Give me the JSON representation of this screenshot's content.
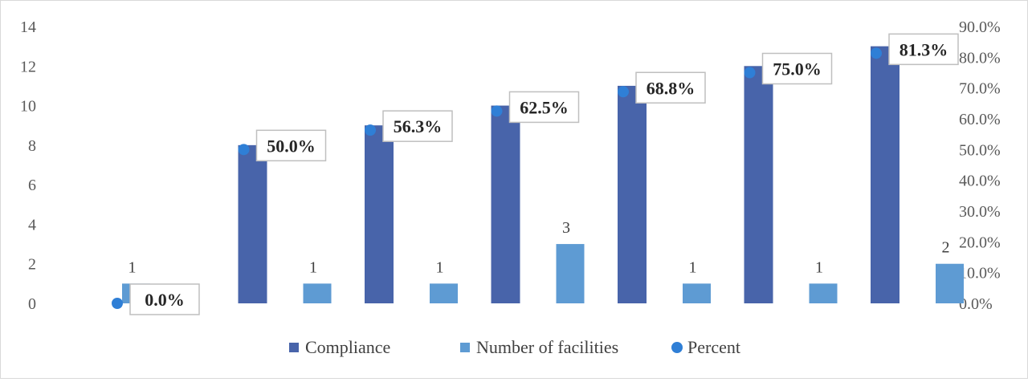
{
  "chart_data": {
    "type": "bar",
    "categories": [
      "",
      "",
      "",
      "",
      "",
      "",
      ""
    ],
    "series": [
      {
        "name": "Compliance",
        "kind": "bar",
        "axis": "left",
        "color": "#4864aa",
        "values": [
          0,
          8,
          9,
          10,
          11,
          12,
          13
        ]
      },
      {
        "name": "Number of facilities",
        "kind": "bar",
        "axis": "left",
        "color": "#5e9bd3",
        "values": [
          1,
          1,
          1,
          3,
          1,
          1,
          2
        ],
        "labels": [
          "1",
          "1",
          "1",
          "3",
          "1",
          "1",
          "2"
        ]
      },
      {
        "name": "Percent",
        "kind": "scatter",
        "axis": "right",
        "color": "#2f7fd6",
        "values": [
          0.0,
          50.0,
          56.3,
          62.5,
          68.8,
          75.0,
          81.3
        ],
        "labels": [
          "0.0%",
          "50.0%",
          "56.3%",
          "62.5%",
          "68.8%",
          "75.0%",
          "81.3%"
        ]
      }
    ],
    "y_left": {
      "range": [
        0,
        14
      ],
      "ticks": [
        "0",
        "2",
        "4",
        "6",
        "8",
        "10",
        "12",
        "14"
      ]
    },
    "y_right": {
      "range": [
        0,
        90
      ],
      "ticks": [
        "0.0%",
        "10.0%",
        "20.0%",
        "30.0%",
        "40.0%",
        "50.0%",
        "60.0%",
        "70.0%",
        "80.0%",
        "90.0%"
      ]
    },
    "grid": false,
    "legend_position": "bottom"
  }
}
